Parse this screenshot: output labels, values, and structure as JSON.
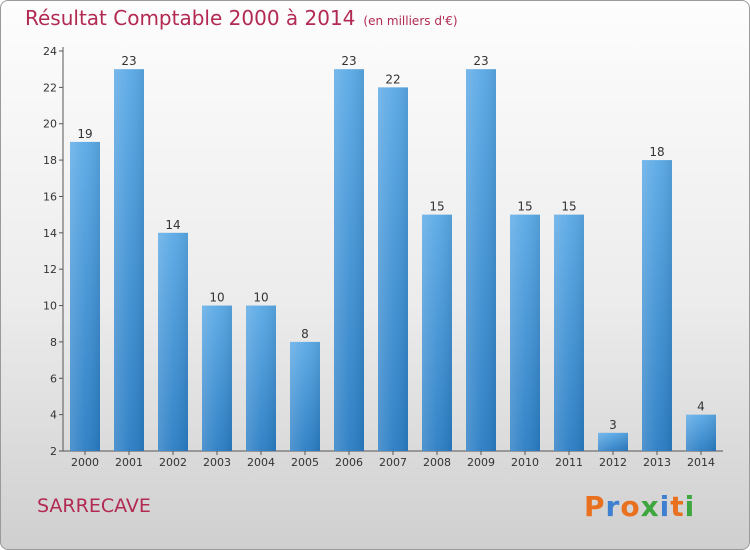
{
  "title": "Résultat Comptable 2000 à 2014",
  "subtitle": "(en milliers d'€)",
  "commune": "SARRECAVE",
  "logo": {
    "letters": [
      "P",
      "r",
      "o",
      "x",
      "i",
      "t",
      "i"
    ],
    "colors": [
      "#e8701e",
      "#3e7fd0",
      "#e8701e",
      "#3ea63e",
      "#3e7fd0",
      "#e8701e",
      "#3ea63e"
    ]
  },
  "colors": {
    "title": "#b22a52",
    "bar_light": "#5aa9e6",
    "bar_dark": "#2a7dc4"
  },
  "chart_data": {
    "type": "bar",
    "title": "Résultat Comptable 2000 à 2014",
    "xlabel": "",
    "ylabel": "",
    "categories": [
      "2000",
      "2001",
      "2002",
      "2003",
      "2004",
      "2005",
      "2006",
      "2007",
      "2008",
      "2009",
      "2010",
      "2011",
      "2012",
      "2013",
      "2014"
    ],
    "values": [
      19,
      23,
      14,
      10,
      10,
      8,
      23,
      22,
      15,
      23,
      15,
      15,
      3,
      18,
      4
    ],
    "ylim": [
      2,
      24
    ],
    "yticks": [
      2,
      4,
      6,
      8,
      10,
      12,
      14,
      16,
      18,
      20,
      22,
      24
    ],
    "grid": false
  }
}
